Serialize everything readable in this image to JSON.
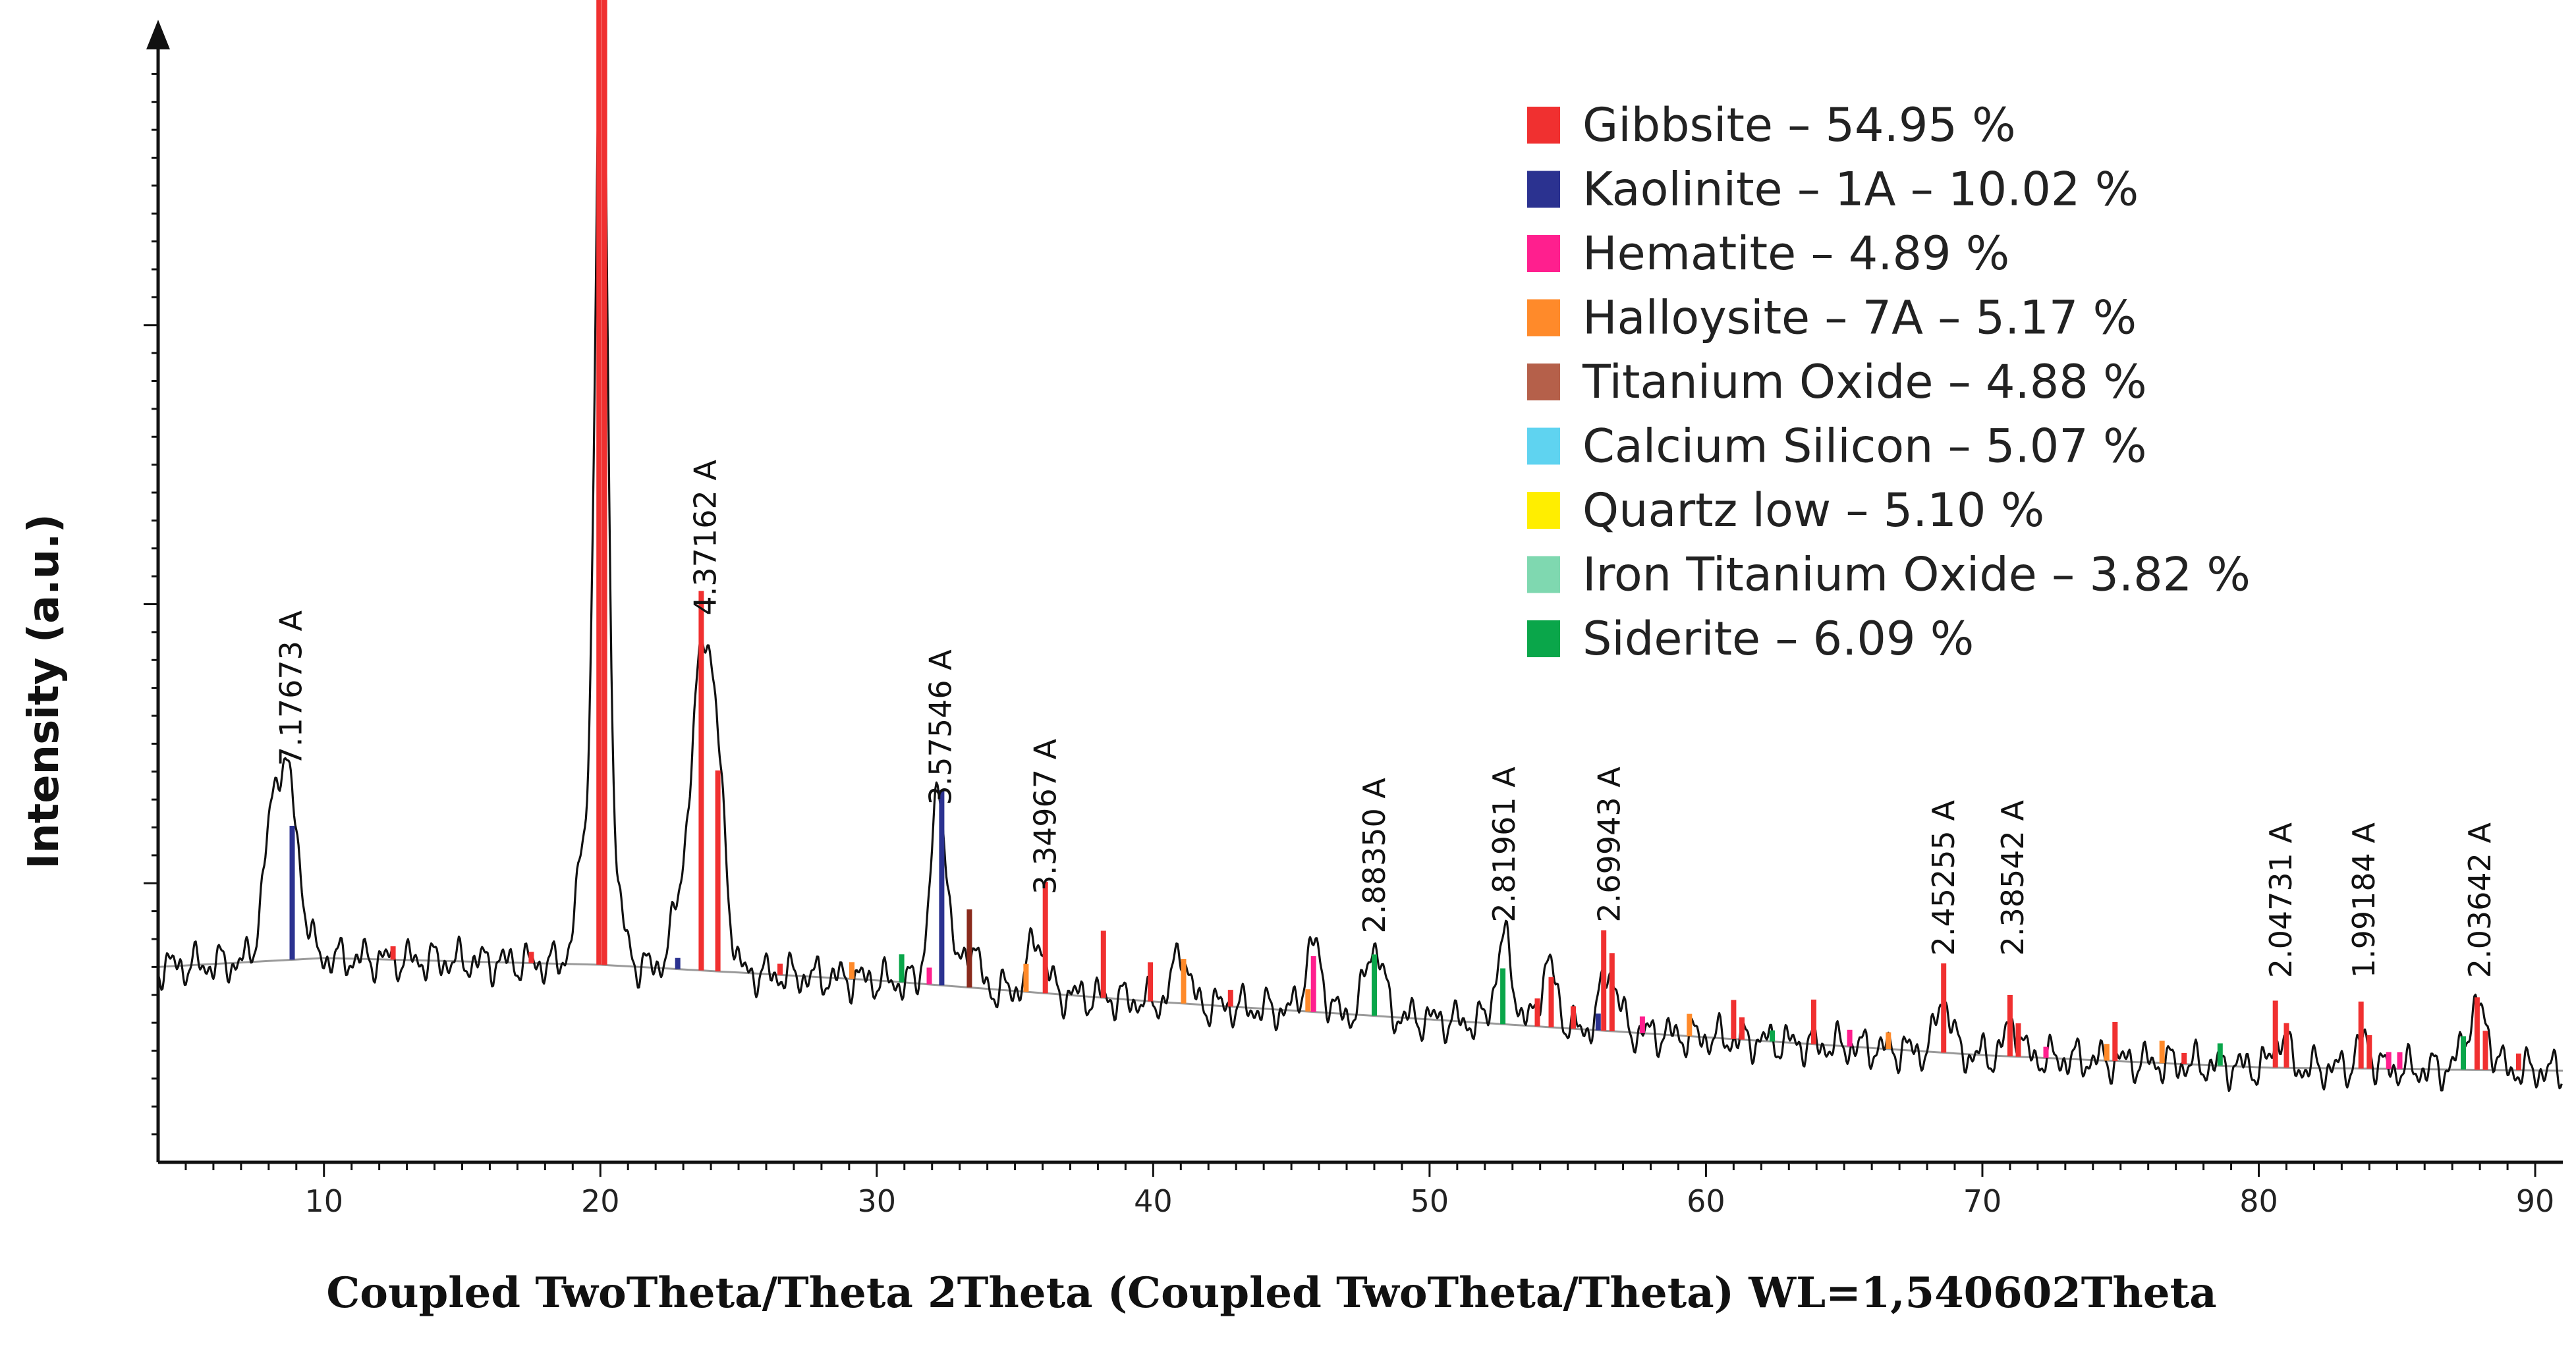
{
  "chart_data": {
    "type": "line",
    "title": "",
    "xlabel": "Coupled TwoTheta/Theta 2Theta (Coupled TwoTheta/Theta) WL=1,540602Theta",
    "ylabel": "Intensity (a.u.)",
    "xlim": [
      4,
      91
    ],
    "ylim": [
      0,
      100
    ],
    "x_ticks": [
      10,
      20,
      30,
      40,
      50,
      60,
      70,
      80,
      90
    ],
    "y_ticks_shown": false,
    "grid": false,
    "legend_position": "top-right",
    "legend": [
      {
        "label": "Gibbsite – 54.95 %",
        "color": "#f03030"
      },
      {
        "label": "Kaolinite – 1A – 10.02 %",
        "color": "#2b3290"
      },
      {
        "label": "Hematite – 4.89 %",
        "color": "#ff1f8e"
      },
      {
        "label": "Halloysite – 7A – 5.17 %",
        "color": "#ff8a2a"
      },
      {
        "label": "Titanium Oxide – 4.88 %",
        "color": "#b5604a"
      },
      {
        "label": "Calcium Silicon – 5.07 %",
        "color": "#5fd3f0"
      },
      {
        "label": "Quartz low – 5.10 %",
        "color": "#ffee00"
      },
      {
        "label": "Iron Titanium Oxide – 3.82 %",
        "color": "#7fd8b0"
      },
      {
        "label": "Siderite – 6.09 %",
        "color": "#0aa64a"
      }
    ],
    "peak_annotations": [
      {
        "x": 8.8,
        "y": 35.5,
        "label": "7.17673 A"
      },
      {
        "x": 23.8,
        "y": 49.0,
        "label": "4.37162 A"
      },
      {
        "x": 32.3,
        "y": 32.0,
        "label": "3.57546 A"
      },
      {
        "x": 36.1,
        "y": 24.0,
        "label": "3.34967 A"
      },
      {
        "x": 48.0,
        "y": 20.5,
        "label": "2.88350 A"
      },
      {
        "x": 52.7,
        "y": 21.5,
        "label": "2.81961 A"
      },
      {
        "x": 56.5,
        "y": 21.5,
        "label": "2.69943 A"
      },
      {
        "x": 68.6,
        "y": 18.5,
        "label": "2.45255 A"
      },
      {
        "x": 71.1,
        "y": 18.5,
        "label": "2.38542 A"
      },
      {
        "x": 80.8,
        "y": 16.5,
        "label": "2.04731 A"
      },
      {
        "x": 83.8,
        "y": 16.5,
        "label": "1.99184 A"
      },
      {
        "x": 88.0,
        "y": 16.5,
        "label": "2.03642 A"
      }
    ],
    "background_line": {
      "x": [
        4,
        10,
        20,
        30,
        40,
        50,
        60,
        70,
        80,
        91
      ],
      "y": [
        17.5,
        18.3,
        17.7,
        16.3,
        14.4,
        12.8,
        11.2,
        9.6,
        8.5,
        8.2
      ]
    },
    "pattern_peaks": [
      {
        "center": 8.6,
        "height": 17.0,
        "width": 0.45
      },
      {
        "center": 8.0,
        "height": 5.0,
        "width": 0.3
      },
      {
        "center": 20.05,
        "height": 84.0,
        "width": 0.22
      },
      {
        "center": 19.55,
        "height": 12.0,
        "width": 0.35
      },
      {
        "center": 20.6,
        "height": 5.0,
        "width": 0.3
      },
      {
        "center": 23.75,
        "height": 26.0,
        "width": 0.35
      },
      {
        "center": 23.1,
        "height": 8.0,
        "width": 0.4
      },
      {
        "center": 24.3,
        "height": 12.0,
        "width": 0.3
      },
      {
        "center": 32.25,
        "height": 17.0,
        "width": 0.3
      },
      {
        "center": 33.4,
        "height": 4.0,
        "width": 0.25
      },
      {
        "center": 35.8,
        "height": 5.0,
        "width": 0.3
      },
      {
        "center": 41.0,
        "height": 5.0,
        "width": 0.25
      },
      {
        "center": 45.8,
        "height": 6.0,
        "width": 0.3
      },
      {
        "center": 48.0,
        "height": 6.5,
        "width": 0.3
      },
      {
        "center": 52.7,
        "height": 7.5,
        "width": 0.3
      },
      {
        "center": 54.3,
        "height": 5.5,
        "width": 0.3
      },
      {
        "center": 56.5,
        "height": 5.5,
        "width": 0.3
      },
      {
        "center": 68.6,
        "height": 5.0,
        "width": 0.25
      },
      {
        "center": 71.1,
        "height": 3.0,
        "width": 0.25
      },
      {
        "center": 80.8,
        "height": 3.0,
        "width": 0.25
      },
      {
        "center": 83.8,
        "height": 2.5,
        "width": 0.25
      },
      {
        "center": 87.9,
        "height": 5.5,
        "width": 0.4
      }
    ],
    "reference_lines": [
      {
        "x": 8.85,
        "height": 12.0,
        "phase": "Kaolinite – 1A – 10.02 %",
        "color": "#2b3290"
      },
      {
        "x": 19.95,
        "height": 100.0,
        "phase": "Gibbsite – 54.95 %",
        "color": "#f03030"
      },
      {
        "x": 20.15,
        "height": 90.0,
        "phase": "Gibbsite – 54.95 %",
        "color": "#f03030"
      },
      {
        "x": 23.65,
        "height": 34.0,
        "phase": "Gibbsite – 54.95 %",
        "color": "#f03030"
      },
      {
        "x": 24.25,
        "height": 18.0,
        "phase": "Gibbsite – 54.95 %",
        "color": "#f03030"
      },
      {
        "x": 12.5,
        "height": 1.2,
        "phase": "Gibbsite – 54.95 %",
        "color": "#f03030"
      },
      {
        "x": 17.5,
        "height": 1.0,
        "phase": "Gibbsite – 54.95 %",
        "color": "#f03030"
      },
      {
        "x": 22.8,
        "height": 1.0,
        "phase": "Kaolinite – 1A – 10.02 %",
        "color": "#2b3290"
      },
      {
        "x": 26.5,
        "height": 1.0,
        "phase": "Gibbsite – 54.95 %",
        "color": "#f03030"
      },
      {
        "x": 29.1,
        "height": 1.5,
        "phase": "Halloysite – 7A – 5.17 %",
        "color": "#ff8a2a"
      },
      {
        "x": 30.9,
        "height": 2.5,
        "phase": "Siderite – 6.09 %",
        "color": "#0aa64a"
      },
      {
        "x": 32.35,
        "height": 17.5,
        "phase": "Kaolinite – 1A – 10.02 %",
        "color": "#2b3290"
      },
      {
        "x": 31.9,
        "height": 1.5,
        "phase": "Hematite – 4.89 %",
        "color": "#ff1f8e"
      },
      {
        "x": 33.35,
        "height": 7.0,
        "phase": "Titanium Oxide – 4.88 %",
        "color": "#8a2a1c"
      },
      {
        "x": 35.4,
        "height": 2.5,
        "phase": "Halloysite – 7A – 5.17 %",
        "color": "#ff8a2a"
      },
      {
        "x": 36.1,
        "height": 10.0,
        "phase": "Gibbsite – 54.95 %",
        "color": "#f03030"
      },
      {
        "x": 38.2,
        "height": 6.0,
        "phase": "Gibbsite – 54.95 %",
        "color": "#f03030"
      },
      {
        "x": 39.9,
        "height": 3.5,
        "phase": "Gibbsite – 54.95 %",
        "color": "#f03030"
      },
      {
        "x": 41.1,
        "height": 4.0,
        "phase": "Halloysite – 7A – 5.17 %",
        "color": "#ff8a2a"
      },
      {
        "x": 42.8,
        "height": 1.5,
        "phase": "Gibbsite – 54.95 %",
        "color": "#f03030"
      },
      {
        "x": 45.8,
        "height": 5.0,
        "phase": "Hematite – 4.89 %",
        "color": "#ff1f8e"
      },
      {
        "x": 45.6,
        "height": 2.0,
        "phase": "Halloysite – 7A – 5.17 %",
        "color": "#ff8a2a"
      },
      {
        "x": 48.0,
        "height": 5.5,
        "phase": "Siderite – 6.09 %",
        "color": "#0aa64a"
      },
      {
        "x": 52.65,
        "height": 5.0,
        "phase": "Siderite – 6.09 %",
        "color": "#0aa64a"
      },
      {
        "x": 53.9,
        "height": 2.5,
        "phase": "Gibbsite – 54.95 %",
        "color": "#f03030"
      },
      {
        "x": 54.4,
        "height": 4.5,
        "phase": "Gibbsite – 54.95 %",
        "color": "#f03030"
      },
      {
        "x": 55.2,
        "height": 2.0,
        "phase": "Gibbsite – 54.95 %",
        "color": "#f03030"
      },
      {
        "x": 56.3,
        "height": 9.0,
        "phase": "Gibbsite – 54.95 %",
        "color": "#f03030"
      },
      {
        "x": 56.6,
        "height": 7.0,
        "phase": "Gibbsite – 54.95 %",
        "color": "#f03030"
      },
      {
        "x": 56.1,
        "height": 1.5,
        "phase": "Kaolinite – 1A – 10.02 %",
        "color": "#2b3290"
      },
      {
        "x": 57.7,
        "height": 1.5,
        "phase": "Hematite – 4.89 %",
        "color": "#ff1f8e"
      },
      {
        "x": 59.4,
        "height": 2.0,
        "phase": "Halloysite – 7A – 5.17 %",
        "color": "#ff8a2a"
      },
      {
        "x": 61.0,
        "height": 3.5,
        "phase": "Gibbsite – 54.95 %",
        "color": "#f03030"
      },
      {
        "x": 61.3,
        "height": 2.0,
        "phase": "Gibbsite – 54.95 %",
        "color": "#f03030"
      },
      {
        "x": 62.4,
        "height": 1.0,
        "phase": "Siderite – 6.09 %",
        "color": "#0aa64a"
      },
      {
        "x": 63.9,
        "height": 4.0,
        "phase": "Gibbsite – 54.95 %",
        "color": "#f03030"
      },
      {
        "x": 65.2,
        "height": 1.5,
        "phase": "Hematite – 4.89 %",
        "color": "#ff1f8e"
      },
      {
        "x": 66.6,
        "height": 1.5,
        "phase": "Halloysite – 7A – 5.17 %",
        "color": "#ff8a2a"
      },
      {
        "x": 68.6,
        "height": 8.0,
        "phase": "Gibbsite – 54.95 %",
        "color": "#f03030"
      },
      {
        "x": 71.0,
        "height": 5.5,
        "phase": "Gibbsite – 54.95 %",
        "color": "#f03030"
      },
      {
        "x": 71.3,
        "height": 3.0,
        "phase": "Gibbsite – 54.95 %",
        "color": "#f03030"
      },
      {
        "x": 72.3,
        "height": 1.0,
        "phase": "Hematite – 4.89 %",
        "color": "#ff1f8e"
      },
      {
        "x": 74.8,
        "height": 3.5,
        "phase": "Gibbsite – 54.95 %",
        "color": "#f03030"
      },
      {
        "x": 74.5,
        "height": 1.5,
        "phase": "Halloysite – 7A – 5.17 %",
        "color": "#ff8a2a"
      },
      {
        "x": 76.5,
        "height": 2.0,
        "phase": "Halloysite – 7A – 5.17 %",
        "color": "#ff8a2a"
      },
      {
        "x": 77.3,
        "height": 1.0,
        "phase": "Gibbsite – 54.95 %",
        "color": "#f03030"
      },
      {
        "x": 78.6,
        "height": 2.0,
        "phase": "Siderite – 6.09 %",
        "color": "#0aa64a"
      },
      {
        "x": 80.6,
        "height": 6.0,
        "phase": "Gibbsite – 54.95 %",
        "color": "#f03030"
      },
      {
        "x": 81.0,
        "height": 4.0,
        "phase": "Gibbsite – 54.95 %",
        "color": "#f03030"
      },
      {
        "x": 83.7,
        "height": 6.0,
        "phase": "Gibbsite – 54.95 %",
        "color": "#f03030"
      },
      {
        "x": 84.0,
        "height": 3.0,
        "phase": "Gibbsite – 54.95 %",
        "color": "#f03030"
      },
      {
        "x": 84.7,
        "height": 1.5,
        "phase": "Hematite – 4.89 %",
        "color": "#ff1f8e"
      },
      {
        "x": 85.1,
        "height": 1.5,
        "phase": "Hematite – 4.89 %",
        "color": "#ff1f8e"
      },
      {
        "x": 87.4,
        "height": 3.0,
        "phase": "Siderite – 6.09 %",
        "color": "#0aa64a"
      },
      {
        "x": 87.9,
        "height": 6.5,
        "phase": "Gibbsite – 54.95 %",
        "color": "#f03030"
      },
      {
        "x": 88.2,
        "height": 3.5,
        "phase": "Gibbsite – 54.95 %",
        "color": "#f03030"
      },
      {
        "x": 89.4,
        "height": 1.5,
        "phase": "Gibbsite – 54.95 %",
        "color": "#f03030"
      }
    ]
  }
}
